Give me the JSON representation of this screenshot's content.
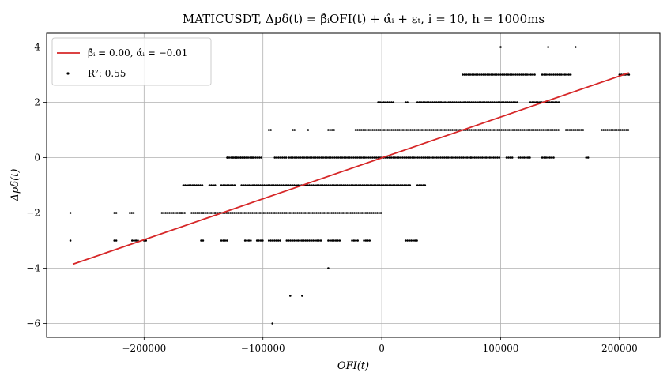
{
  "chart_data": {
    "type": "scatter",
    "title": "MATICUSDT, Δpδ(t) = β̂ᵢOFI(t) + α̂ᵢ + εₜ,  i = 10, h = 1000ms",
    "xlabel": "OFI(t)",
    "ylabel": "Δpδ(t)",
    "xlim": [
      -282000,
      234000
    ],
    "ylim": [
      -6.5,
      4.5
    ],
    "xticks": [
      -200000,
      -100000,
      0,
      100000,
      200000
    ],
    "xtick_labels": [
      "−200000",
      "−100000",
      "0",
      "100000",
      "200000"
    ],
    "yticks": [
      -6,
      -4,
      -2,
      0,
      2,
      4
    ],
    "ytick_labels": [
      "−6",
      "−4",
      "−2",
      "0",
      "2",
      "4"
    ],
    "grid": true,
    "legend_placement": "top-left",
    "legend": [
      {
        "label": "β̂ᵢ = 0.00,  α̂ᵢ = −0.01",
        "marker": "line",
        "color": "#d62728"
      },
      {
        "label": "R²: 0.55",
        "marker": "dot",
        "color": "#000000"
      }
    ],
    "fit_line": {
      "slope": 1.48e-05,
      "intercept": -0.01,
      "x_range": [
        -260000,
        208000
      ],
      "color": "#d62728"
    },
    "point_color": "#000000",
    "series": [
      {
        "segments": [
          {
            "y": 4,
            "x": [
              [
                100000,
                100000
              ],
              [
                140000,
                140000
              ],
              [
                163000,
                163000
              ]
            ]
          },
          {
            "y": 3,
            "x": [
              [
                68000,
                130000
              ],
              [
                135000,
                160000
              ],
              [
                200000,
                208000
              ]
            ]
          },
          {
            "y": 2,
            "x": [
              [
                -3000,
                10000
              ],
              [
                20000,
                22000
              ],
              [
                30000,
                50000
              ],
              [
                50000,
                115000
              ],
              [
                125000,
                150000
              ]
            ]
          },
          {
            "y": 1,
            "x": [
              [
                -95000,
                -92000
              ],
              [
                -75000,
                -73000
              ],
              [
                -62000,
                -62000
              ],
              [
                -45000,
                -40000
              ],
              [
                -22000,
                80000
              ],
              [
                80000,
                150000
              ],
              [
                155000,
                170000
              ],
              [
                185000,
                208000
              ]
            ]
          },
          {
            "y": 0,
            "x": [
              [
                -130000,
                -100000
              ],
              [
                -130000,
                -130000
              ],
              [
                -125000,
                -115000
              ],
              [
                -110000,
                -108000
              ],
              [
                -90000,
                -80000
              ],
              [
                -78000,
                0
              ],
              [
                0,
                75000
              ],
              [
                75000,
                100000
              ],
              [
                105000,
                110000
              ],
              [
                115000,
                125000
              ],
              [
                135000,
                145000
              ],
              [
                172000,
                175000
              ]
            ]
          },
          {
            "y": -1,
            "x": [
              [
                -167000,
                -150000
              ],
              [
                -145000,
                -140000
              ],
              [
                -135000,
                -123000
              ],
              [
                -118000,
                -80000
              ],
              [
                -80000,
                25000
              ],
              [
                30000,
                37000
              ]
            ]
          },
          {
            "y": -2,
            "x": [
              [
                -262000,
                -262000
              ],
              [
                -225000,
                -222000
              ],
              [
                -212000,
                -208000
              ],
              [
                -185000,
                -165000
              ],
              [
                -170000,
                -168000
              ],
              [
                -160000,
                -150000
              ],
              [
                -150000,
                -140000
              ],
              [
                -140000,
                -120000
              ],
              [
                -120000,
                -90000
              ],
              [
                -90000,
                0
              ]
            ]
          },
          {
            "y": -3,
            "x": [
              [
                -262000,
                -262000
              ],
              [
                -225000,
                -222000
              ],
              [
                -210000,
                -205000
              ],
              [
                -200000,
                -198000
              ],
              [
                -152000,
                -150000
              ],
              [
                -135000,
                -130000
              ],
              [
                -115000,
                -110000
              ],
              [
                -105000,
                -100000
              ],
              [
                -95000,
                -85000
              ],
              [
                -80000,
                -50000
              ],
              [
                -45000,
                -35000
              ],
              [
                -25000,
                -20000
              ],
              [
                -15000,
                -10000
              ],
              [
                20000,
                30000
              ]
            ]
          },
          {
            "y": -4,
            "x": [
              [
                -45000,
                -45000
              ]
            ]
          },
          {
            "y": -5,
            "x": [
              [
                -77000,
                -77000
              ],
              [
                -67000,
                -67000
              ]
            ]
          },
          {
            "y": -6,
            "x": [
              [
                -92000,
                -92000
              ]
            ]
          }
        ]
      }
    ]
  }
}
